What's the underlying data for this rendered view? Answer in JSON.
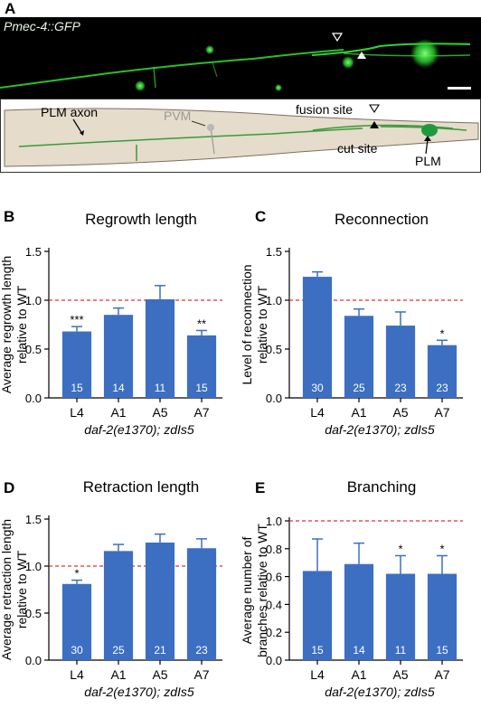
{
  "panel_a": {
    "letter": "A",
    "micrograph_label": "Pmec-4::GFP",
    "schematic": {
      "plm_axon": "PLM axon",
      "pvm": "PVM",
      "fusion_site": "fusion site",
      "cut_site": "cut site",
      "plm": "PLM"
    },
    "colors": {
      "gfp": "#2fd42f",
      "worm_fill": "#e5dccb",
      "axon": "#3a9a3a",
      "plm_cell": "#1e9a3c"
    }
  },
  "colors": {
    "bar": "#3c6fc2",
    "reference_line": "#e03030",
    "count_label": "#ffffff"
  },
  "chart_data": [
    {
      "id": "B",
      "type": "bar",
      "title": "Regrowth length",
      "ylabel_lines": [
        "Average regrowth length",
        "relative to WT"
      ],
      "categories": [
        "L4",
        "A1",
        "A5",
        "A7"
      ],
      "values": [
        0.68,
        0.85,
        1.01,
        0.64
      ],
      "errors": [
        0.05,
        0.07,
        0.14,
        0.05
      ],
      "n": [
        "15",
        "14",
        "11",
        "15"
      ],
      "significance": [
        "***",
        "",
        "",
        "**"
      ],
      "xlabel": "daf-2(e1370); zdIs5",
      "ylim": [
        0,
        1.5
      ],
      "yticks": [
        "0.0",
        "0.5",
        "1.0",
        "1.5"
      ],
      "reference_line": 1.0
    },
    {
      "id": "C",
      "type": "bar",
      "title": "Reconnection",
      "ylabel_lines": [
        "Level of reconnection",
        "relative to WT"
      ],
      "categories": [
        "L4",
        "A1",
        "A5",
        "A7"
      ],
      "values": [
        1.24,
        0.84,
        0.74,
        0.54
      ],
      "errors": [
        0.05,
        0.07,
        0.14,
        0.05
      ],
      "n": [
        "30",
        "25",
        "23",
        "23"
      ],
      "significance": [
        "",
        "",
        "",
        "*"
      ],
      "xlabel": "daf-2(e1370); zdIs5",
      "ylim": [
        0,
        1.5
      ],
      "yticks": [
        "0.0",
        "0.5",
        "1.0",
        "1.5"
      ],
      "reference_line": 1.0
    },
    {
      "id": "D",
      "type": "bar",
      "title": "Retraction length",
      "ylabel_lines": [
        "Average retraction length",
        "relative to WT"
      ],
      "categories": [
        "L4",
        "A1",
        "A5",
        "A7"
      ],
      "values": [
        0.81,
        1.16,
        1.25,
        1.19
      ],
      "errors": [
        0.04,
        0.07,
        0.09,
        0.1
      ],
      "n": [
        "30",
        "25",
        "21",
        "23"
      ],
      "significance": [
        "*",
        "",
        "",
        ""
      ],
      "xlabel": "daf-2(e1370); zdIs5",
      "ylim": [
        0,
        1.5
      ],
      "yticks": [
        "0.0",
        "0.5",
        "1.0",
        "1.5"
      ],
      "reference_line": 1.0
    },
    {
      "id": "E",
      "type": "bar",
      "title": "Branching",
      "ylabel_lines": [
        "Average number of",
        "branches relative to WT"
      ],
      "categories": [
        "L4",
        "A1",
        "A5",
        "A7"
      ],
      "values": [
        0.64,
        0.69,
        0.62,
        0.62
      ],
      "errors": [
        0.23,
        0.15,
        0.13,
        0.13
      ],
      "n": [
        "15",
        "14",
        "11",
        "15"
      ],
      "significance": [
        "",
        "",
        "*",
        "*"
      ],
      "xlabel": "daf-2(e1370); zdIs5",
      "ylim": [
        0,
        1.0
      ],
      "yticks": [
        "0.0",
        "0.2",
        "0.4",
        "0.6",
        "0.8",
        "1.0"
      ],
      "reference_line": 1.0
    }
  ]
}
